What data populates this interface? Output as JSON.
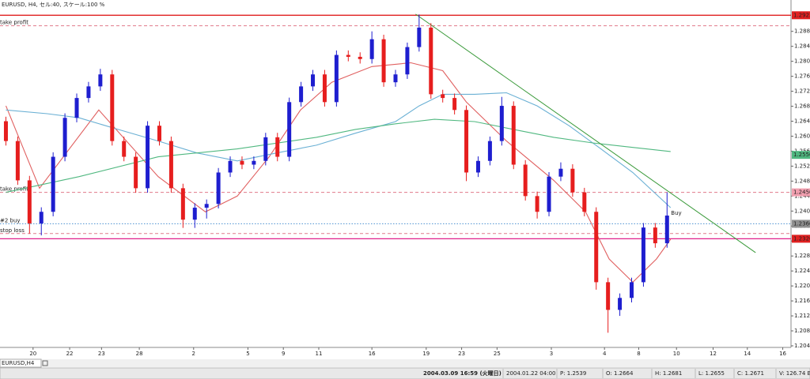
{
  "chart_data": {
    "type": "candlestick",
    "title": "EURUSD, H4, セル:40, スケール:100 %",
    "x": [
      0,
      1,
      2,
      3,
      4,
      5,
      6,
      7,
      8,
      9,
      10,
      11,
      12,
      13,
      14,
      15,
      16,
      17,
      18,
      19,
      20,
      21,
      22,
      23,
      24,
      25,
      26,
      27,
      28,
      29,
      30,
      31,
      32,
      33,
      34,
      35,
      36,
      37,
      38,
      39,
      40,
      41,
      42,
      43,
      44,
      45,
      46,
      47,
      48,
      49,
      50,
      51,
      52,
      53,
      54,
      55,
      56
    ],
    "open": [
      1.264,
      1.2587,
      1.2482,
      1.2367,
      1.2398,
      1.2545,
      1.2649,
      1.2702,
      1.2733,
      1.2765,
      1.2587,
      1.2545,
      1.2461,
      1.2628,
      1.2587,
      1.2461,
      1.2377,
      1.2409,
      1.2419,
      1.2503,
      1.2534,
      1.2524,
      1.2534,
      1.2597,
      1.2545,
      1.2691,
      1.2733,
      1.2765,
      1.2691,
      1.2817,
      1.2812,
      1.2806,
      1.2859,
      1.2744,
      1.2765,
      1.2838,
      1.289,
      1.2712,
      1.2702,
      1.267,
      1.2503,
      1.2534,
      1.2587,
      1.2681,
      1.2524,
      1.244,
      1.2398,
      1.2492,
      1.2513,
      1.245,
      1.2398,
      1.221,
      1.2136,
      1.2168,
      1.221,
      1.2356,
      1.2314
    ],
    "high": [
      1.2652,
      1.2599,
      1.2494,
      1.241,
      1.2557,
      1.2661,
      1.2714,
      1.2745,
      1.278,
      1.2777,
      1.2599,
      1.2557,
      1.264,
      1.264,
      1.2599,
      1.2473,
      1.2421,
      1.2431,
      1.2515,
      1.2546,
      1.2546,
      1.2546,
      1.2609,
      1.2609,
      1.2703,
      1.2745,
      1.2777,
      1.2777,
      1.2829,
      1.2829,
      1.2824,
      1.288,
      1.2871,
      1.2777,
      1.285,
      1.2925,
      1.2902,
      1.2724,
      1.2714,
      1.2682,
      1.2546,
      1.2599,
      1.2705,
      1.2693,
      1.2536,
      1.2452,
      1.2504,
      1.253,
      1.2525,
      1.2462,
      1.241,
      1.2222,
      1.218,
      1.2222,
      1.2368,
      1.2368,
      1.245
    ],
    "low": [
      1.2575,
      1.247,
      1.234,
      1.2335,
      1.2386,
      1.2533,
      1.2637,
      1.269,
      1.2721,
      1.2575,
      1.2533,
      1.2449,
      1.2449,
      1.2575,
      1.2449,
      1.2355,
      1.2355,
      1.238,
      1.2407,
      1.2491,
      1.2512,
      1.2512,
      1.2522,
      1.2533,
      1.2533,
      1.2679,
      1.2721,
      1.2679,
      1.2679,
      1.28,
      1.2794,
      1.2794,
      1.2732,
      1.2732,
      1.2753,
      1.2826,
      1.27,
      1.269,
      1.2658,
      1.248,
      1.2491,
      1.2522,
      1.2575,
      1.2512,
      1.2428,
      1.238,
      1.2386,
      1.248,
      1.2438,
      1.2386,
      1.219,
      1.2075,
      1.212,
      1.2156,
      1.2198,
      1.2302,
      1.2302
    ],
    "close": [
      1.2587,
      1.2482,
      1.2367,
      1.2398,
      1.2545,
      1.2649,
      1.2702,
      1.2733,
      1.2765,
      1.2587,
      1.2545,
      1.2461,
      1.2628,
      1.2587,
      1.2461,
      1.2377,
      1.2409,
      1.2419,
      1.2503,
      1.2534,
      1.2524,
      1.2534,
      1.2597,
      1.2545,
      1.2691,
      1.2733,
      1.2765,
      1.2691,
      1.2817,
      1.2812,
      1.2806,
      1.2859,
      1.2744,
      1.2765,
      1.2838,
      1.289,
      1.2712,
      1.2702,
      1.267,
      1.2503,
      1.2534,
      1.2587,
      1.2681,
      1.2524,
      1.244,
      1.2398,
      1.2492,
      1.2513,
      1.245,
      1.2398,
      1.221,
      1.2136,
      1.2168,
      1.221,
      1.2356,
      1.2314,
      1.2388
    ],
    "up_color": "#1e1ecf",
    "down_color": "#e61e1e",
    "lines": [
      {
        "color": "#e06060",
        "x": [
          0,
          2.85,
          7.87,
          12.9,
          16.9,
          19.6,
          22.3,
          24.95,
          27.6,
          31.0,
          34.3,
          37.0,
          39.0,
          42.4,
          46.4,
          49.1,
          51.1,
          53.1,
          55.1,
          56.3
        ],
        "values": [
          1.2681,
          1.2461,
          1.267,
          1.2492,
          1.2398,
          1.244,
          1.2545,
          1.267,
          1.2744,
          1.2786,
          1.2796,
          1.2775,
          1.2691,
          1.2587,
          1.2482,
          1.2398,
          1.2272,
          1.221,
          1.2272,
          1.2325
        ]
      },
      {
        "color": "#6ab0d4",
        "x": [
          0,
          3.5,
          6.2,
          9.5,
          12.9,
          16.2,
          19.6,
          22.9,
          26.3,
          29.6,
          33.0,
          35.0,
          37.0,
          39.7,
          42.4,
          45.0,
          47.7,
          50.4,
          53.1,
          56.3
        ],
        "values": [
          1.267,
          1.266,
          1.2649,
          1.2618,
          1.2587,
          1.2555,
          1.2534,
          1.2555,
          1.2576,
          1.2608,
          1.2639,
          1.2681,
          1.2712,
          1.2712,
          1.2716,
          1.2681,
          1.2628,
          1.2566,
          1.2503,
          1.2409
        ]
      },
      {
        "color": "#50b880",
        "x": [
          0,
          6.2,
          12.9,
          19.6,
          26.3,
          29.6,
          33.0,
          36.3,
          39.7,
          43.0,
          46.4,
          49.7,
          53.1,
          56.3
        ],
        "values": [
          1.245,
          1.2492,
          1.2545,
          1.2566,
          1.2597,
          1.2618,
          1.2633,
          1.2645,
          1.2639,
          1.2618,
          1.2597,
          1.2582,
          1.257,
          1.2559
        ],
        "tag": {
          "value": 1.255,
          "label": "1.2550"
        }
      }
    ],
    "trendline": {
      "color": "#3a9a3a",
      "x": [
        34.7,
        63.5
      ],
      "values": [
        1.2926,
        1.2289
      ]
    },
    "levels": [
      {
        "value": 1.2923,
        "color": "#e02020",
        "style": "solid",
        "tag": 1.2923
      },
      {
        "value": 1.2895,
        "color": "#e07a8a",
        "style": "dashed",
        "label": "take profit"
      },
      {
        "value": 1.245,
        "color": "#e07a8a",
        "style": "dashed",
        "label": "take profit",
        "tag": {
          "value": 1.245,
          "label": "1.2450"
        },
        "tag_color": "#f2a0b0"
      },
      {
        "value": 1.2366,
        "color": "#4a90d0",
        "style": "dotted",
        "label": "#2 buy",
        "tag": 1.2366,
        "tag_color": "#909090"
      },
      {
        "value": 1.234,
        "color": "#e07a8a",
        "style": "dashed",
        "label": "stop loss"
      },
      {
        "value": 1.2326,
        "color": "#e0208c",
        "style": "solid",
        "tag": 1.2326,
        "tag_color": "#e02020"
      }
    ],
    "buy_label": "Buy",
    "xlim": [
      -0.5,
      66.5
    ],
    "xticks": [
      {
        "value": 2.3,
        "label": "20"
      },
      {
        "value": 5.4,
        "label": "22"
      },
      {
        "value": 8.1,
        "label": "23"
      },
      {
        "value": 11.3,
        "label": "28"
      },
      {
        "value": 15.9,
        "label": "2"
      },
      {
        "value": 20.5,
        "label": "5"
      },
      {
        "value": 23.5,
        "label": "9"
      },
      {
        "value": 26.5,
        "label": "11"
      },
      {
        "value": 31.0,
        "label": "16"
      },
      {
        "value": 35.6,
        "label": "19"
      },
      {
        "value": 38.6,
        "label": "23"
      },
      {
        "value": 41.6,
        "label": "25"
      },
      {
        "value": 46.2,
        "label": "3"
      },
      {
        "value": 50.7,
        "label": "4"
      },
      {
        "value": 53.6,
        "label": "8"
      },
      {
        "value": 56.8,
        "label": "10"
      },
      {
        "value": 59.9,
        "label": "12"
      },
      {
        "value": 62.8,
        "label": "14"
      },
      {
        "value": 65.8,
        "label": "16"
      }
    ],
    "ylim": [
      1.204,
      1.293
    ],
    "yticks": [
      {
        "value": 1.288,
        "label": "1.2880"
      },
      {
        "value": 1.284,
        "label": "1.2840"
      },
      {
        "value": 1.28,
        "label": "1.2800"
      },
      {
        "value": 1.276,
        "label": "1.2760"
      },
      {
        "value": 1.272,
        "label": "1.2720"
      },
      {
        "value": 1.268,
        "label": "1.2680"
      },
      {
        "value": 1.264,
        "label": "1.2640"
      },
      {
        "value": 1.26,
        "label": "1.2600"
      },
      {
        "value": 1.256,
        "label": "1.2560"
      },
      {
        "value": 1.252,
        "label": "1.2520"
      },
      {
        "value": 1.248,
        "label": "1.2480"
      },
      {
        "value": 1.244,
        "label": "1.2440"
      },
      {
        "value": 1.24,
        "label": "1.2400"
      },
      {
        "value": 1.236,
        "label": "1.2360"
      },
      {
        "value": 1.232,
        "label": "1.2320"
      },
      {
        "value": 1.228,
        "label": "1.2280"
      },
      {
        "value": 1.224,
        "label": "1.2240"
      },
      {
        "value": 1.22,
        "label": "1.2200"
      },
      {
        "value": 1.216,
        "label": "1.2160"
      },
      {
        "value": 1.212,
        "label": "1.2120"
      },
      {
        "value": 1.208,
        "label": "1.2080"
      },
      {
        "value": 1.204,
        "label": "1.2040"
      }
    ]
  },
  "window": {
    "tab": "EURUSD,H4",
    "status": [
      "2004.03.09 16:59 (火曜日)",
      "2004.01.22 04:00",
      "P: 1.2539",
      "O: 1.2664",
      "H: 1.2681",
      "L: 1.2655",
      "C: 1.2671",
      "V: 126.74 B"
    ]
  }
}
